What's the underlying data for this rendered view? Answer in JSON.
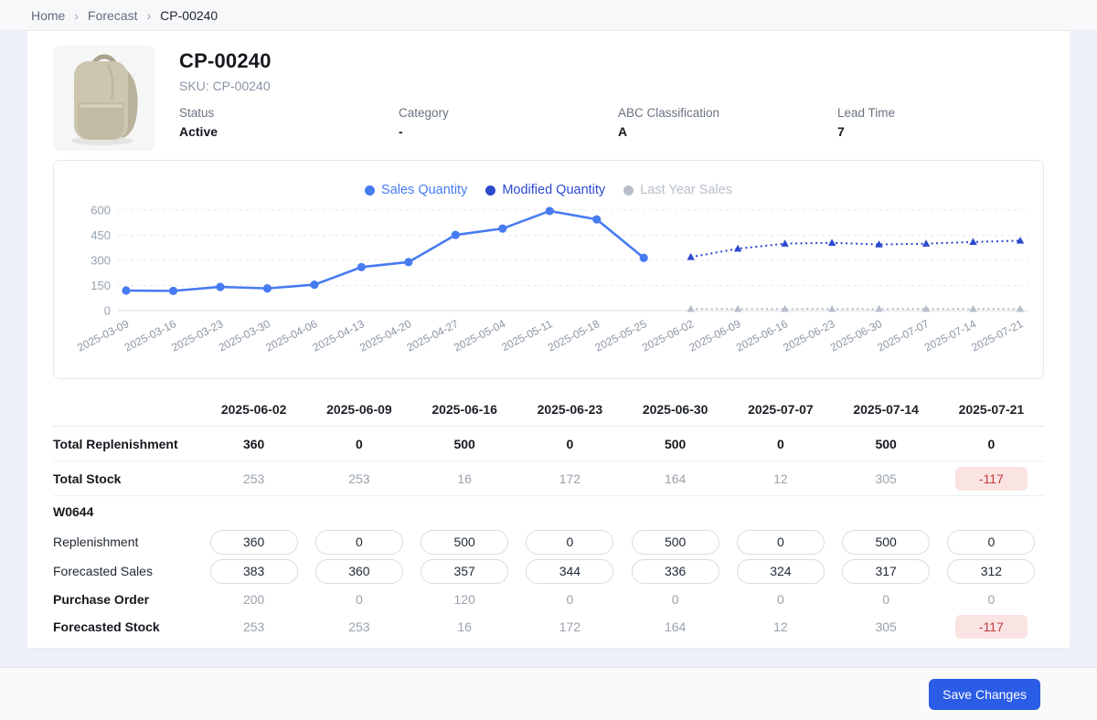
{
  "breadcrumb": {
    "items": [
      "Home",
      "Forecast",
      "CP-00240"
    ],
    "separator": "›"
  },
  "product": {
    "title": "CP-00240",
    "sku_line": "SKU: CP-00240",
    "attributes": [
      {
        "label": "Status",
        "value": "Active"
      },
      {
        "label": "Category",
        "value": "-"
      },
      {
        "label": "ABC Classification",
        "value": "A"
      },
      {
        "label": "Lead Time",
        "value": "7"
      }
    ]
  },
  "chart_data": {
    "type": "line",
    "x": [
      "2025-03-09",
      "2025-03-16",
      "2025-03-23",
      "2025-03-30",
      "2025-04-06",
      "2025-04-13",
      "2025-04-20",
      "2025-04-27",
      "2025-05-04",
      "2025-05-11",
      "2025-05-18",
      "2025-05-25",
      "2025-06-02",
      "2025-06-09",
      "2025-06-16",
      "2025-06-23",
      "2025-06-30",
      "2025-07-07",
      "2025-07-14",
      "2025-07-21"
    ],
    "series": [
      {
        "name": "Sales Quantity",
        "color": "#477bf2",
        "style": "solid",
        "marker": "circle",
        "values": [
          120,
          118,
          142,
          133,
          155,
          260,
          290,
          452,
          490,
          595,
          545,
          315,
          null,
          null,
          null,
          null,
          null,
          null,
          null,
          null
        ]
      },
      {
        "name": "Modified Quantity",
        "color": "#2b49cf",
        "style": "dotted",
        "marker": "triangle",
        "values": [
          null,
          null,
          null,
          null,
          null,
          null,
          null,
          null,
          null,
          null,
          null,
          null,
          320,
          370,
          400,
          405,
          395,
          400,
          410,
          418
        ]
      },
      {
        "name": "Last Year Sales",
        "color": "#b8bfcb",
        "style": "dashed",
        "marker": "triangle",
        "values": [
          null,
          null,
          null,
          null,
          null,
          null,
          null,
          null,
          null,
          null,
          null,
          null,
          10,
          10,
          10,
          10,
          10,
          10,
          10,
          10
        ]
      }
    ],
    "yticks": [
      0,
      150,
      300,
      450,
      600
    ],
    "ylim": [
      0,
      660
    ],
    "grid": true,
    "legend_position": "top-center"
  },
  "table": {
    "columns": [
      "2025-06-02",
      "2025-06-09",
      "2025-06-16",
      "2025-06-23",
      "2025-06-30",
      "2025-07-07",
      "2025-07-14",
      "2025-07-21"
    ],
    "summary_rows": [
      {
        "label": "Total Replenishment",
        "style": "strong",
        "values": [
          "360",
          "0",
          "500",
          "0",
          "500",
          "0",
          "500",
          "0"
        ]
      },
      {
        "label": "Total Stock",
        "style": "muted",
        "values": [
          "253",
          "253",
          "16",
          "172",
          "164",
          "12",
          "305",
          "-117"
        ]
      }
    ],
    "warehouse": {
      "name": "W0644",
      "rows": [
        {
          "label": "Replenishment",
          "type": "input",
          "values": [
            "360",
            "0",
            "500",
            "0",
            "500",
            "0",
            "500",
            "0"
          ]
        },
        {
          "label": "Forecasted Sales",
          "type": "input",
          "values": [
            "383",
            "360",
            "357",
            "344",
            "336",
            "324",
            "317",
            "312"
          ]
        },
        {
          "label": "Purchase Order",
          "type": "text",
          "values": [
            "200",
            "0",
            "120",
            "0",
            "0",
            "0",
            "0",
            "0"
          ]
        },
        {
          "label": "Forecasted Stock",
          "type": "text",
          "values": [
            "253",
            "253",
            "16",
            "172",
            "164",
            "12",
            "305",
            "-117"
          ]
        }
      ]
    }
  },
  "footer": {
    "save_label": "Save Changes"
  },
  "colors": {
    "accent": "#2b5ce6",
    "sales_line": "#477bf2",
    "modified_line": "#2b49cf",
    "last_year_line": "#b8bfcb",
    "negative_text": "#c23a3a",
    "negative_bg": "#f9e3e3"
  }
}
